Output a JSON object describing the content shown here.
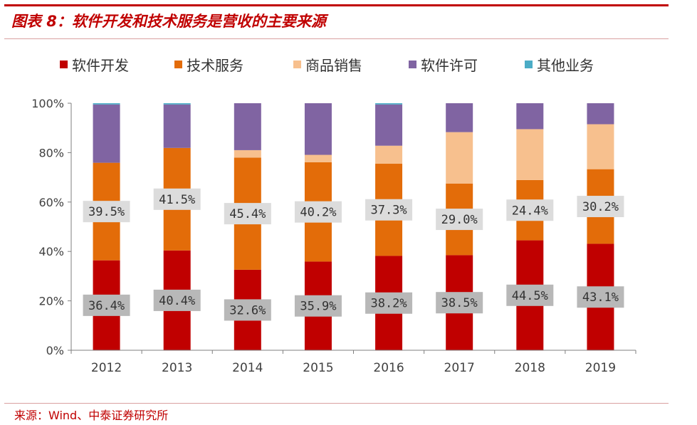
{
  "figure_title": "图表 8：软件开发和技术服务是营收的主要来源",
  "source": "来源：Wind、中泰证券研究所",
  "chart_data": {
    "type": "bar",
    "stacked": true,
    "percent_stacked": true,
    "categories": [
      "2012",
      "2013",
      "2014",
      "2015",
      "2016",
      "2017",
      "2018",
      "2019"
    ],
    "series": [
      {
        "name": "软件开发",
        "color": "#c00000",
        "values": [
          36.4,
          40.4,
          32.6,
          35.9,
          38.2,
          38.5,
          44.5,
          43.1
        ]
      },
      {
        "name": "技术服务",
        "color": "#e36c09",
        "values": [
          39.5,
          41.5,
          45.4,
          40.2,
          37.3,
          29.0,
          24.4,
          30.2
        ]
      },
      {
        "name": "商品销售",
        "color": "#f7c08e",
        "values": [
          0.0,
          0.0,
          3.0,
          3.0,
          7.3,
          20.8,
          20.6,
          18.2
        ]
      },
      {
        "name": "软件许可",
        "color": "#8064a2",
        "values": [
          23.6,
          17.6,
          19.0,
          20.9,
          16.7,
          11.7,
          10.5,
          8.5
        ]
      },
      {
        "name": "其他业务",
        "color": "#4bacc6",
        "values": [
          0.5,
          0.5,
          0.0,
          0.0,
          0.5,
          0.0,
          0.0,
          0.0
        ]
      }
    ],
    "data_labels": {
      "软件开发": [
        "36.4%",
        "40.4%",
        "32.6%",
        "35.9%",
        "38.2%",
        "38.5%",
        "44.5%",
        "43.1%"
      ],
      "技术服务": [
        "39.5%",
        "41.5%",
        "45.4%",
        "40.2%",
        "37.3%",
        "29.0%",
        "24.4%",
        "30.2%"
      ]
    },
    "y_ticks": [
      "0%",
      "20%",
      "40%",
      "60%",
      "80%",
      "100%"
    ],
    "ylim": [
      0,
      100
    ],
    "legend_position": "top",
    "grid": false
  }
}
